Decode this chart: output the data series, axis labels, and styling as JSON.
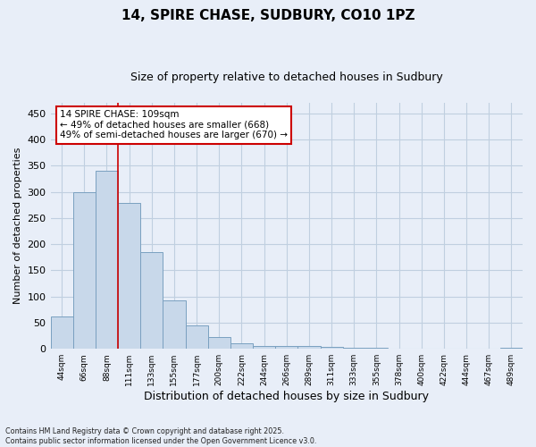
{
  "title1": "14, SPIRE CHASE, SUDBURY, CO10 1PZ",
  "title2": "Size of property relative to detached houses in Sudbury",
  "xlabel": "Distribution of detached houses by size in Sudbury",
  "ylabel": "Number of detached properties",
  "bar_color": "#c8d8ea",
  "bar_edge_color": "#7aa0c0",
  "grid_color": "#c0cfe0",
  "background_color": "#e8eef8",
  "vline_color": "#cc0000",
  "annotation_text": "14 SPIRE CHASE: 109sqm\n← 49% of detached houses are smaller (668)\n49% of semi-detached houses are larger (670) →",
  "annotation_box_color": "white",
  "annotation_box_edge": "#cc0000",
  "footer": "Contains HM Land Registry data © Crown copyright and database right 2025.\nContains public sector information licensed under the Open Government Licence v3.0.",
  "categories": [
    "44sqm",
    "66sqm",
    "88sqm",
    "111sqm",
    "133sqm",
    "155sqm",
    "177sqm",
    "200sqm",
    "222sqm",
    "244sqm",
    "266sqm",
    "289sqm",
    "311sqm",
    "333sqm",
    "355sqm",
    "378sqm",
    "400sqm",
    "422sqm",
    "444sqm",
    "467sqm",
    "489sqm"
  ],
  "values": [
    62,
    300,
    340,
    278,
    185,
    93,
    45,
    22,
    11,
    6,
    5,
    5,
    3,
    2,
    2,
    1,
    1,
    1,
    0,
    1,
    2
  ],
  "ylim": [
    0,
    470
  ],
  "yticks": [
    0,
    50,
    100,
    150,
    200,
    250,
    300,
    350,
    400,
    450
  ],
  "vline_index": 3
}
